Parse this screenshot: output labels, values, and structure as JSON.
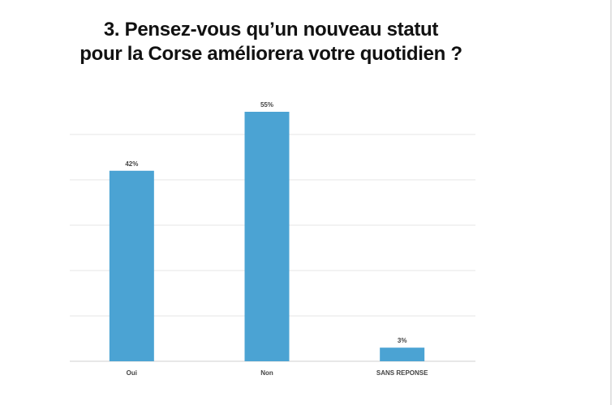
{
  "title": {
    "line1": "3. Pensez-vous qu’un nouveau statut",
    "line2": "pour la Corse améliorera votre quotidien ?"
  },
  "colors": {
    "bar": "#4ba3d3",
    "grid": "#e6e6e6",
    "baseline": "#cfcfcf"
  },
  "chart_data": {
    "type": "bar",
    "title": "3. Pensez-vous qu’un nouveau statut pour la Corse améliorera votre quotidien ?",
    "categories": [
      "Oui",
      "Non",
      "SANS REPONSE"
    ],
    "values": [
      42,
      55,
      3
    ],
    "data_labels": [
      "42%",
      "55%",
      "3%"
    ],
    "unit": "%",
    "ylim": [
      0,
      60
    ],
    "gridlines": [
      0,
      10,
      20,
      30,
      40,
      50
    ],
    "y_tick_labels_visible": false,
    "grid": true,
    "legend": "none"
  }
}
